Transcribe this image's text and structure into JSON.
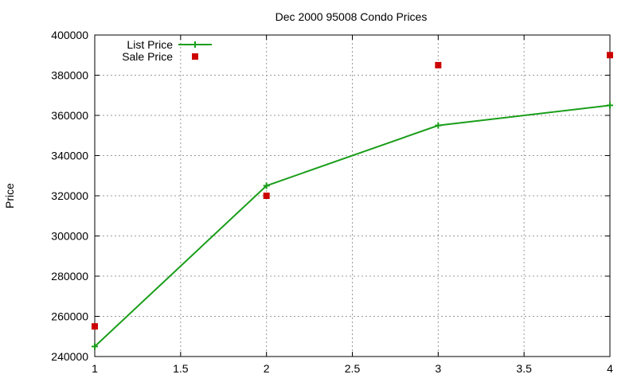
{
  "chart_data": {
    "type": "line",
    "title": "Dec 2000 95008 Condo Prices",
    "xlabel": "",
    "ylabel": "Price",
    "xlim": [
      1,
      4
    ],
    "ylim": [
      240000,
      400000
    ],
    "xticks": [
      1,
      1.5,
      2,
      2.5,
      3,
      3.5,
      4
    ],
    "yticks": [
      240000,
      260000,
      280000,
      300000,
      320000,
      340000,
      360000,
      380000,
      400000
    ],
    "grid": true,
    "legend_position": "top-left",
    "series": [
      {
        "name": "List Price",
        "style": "lines+crosses",
        "color": "#1a9e1a",
        "x": [
          1,
          2,
          3,
          4
        ],
        "y": [
          245000,
          325000,
          355000,
          365000
        ]
      },
      {
        "name": "Sale Price",
        "style": "squares",
        "color": "#cc0000",
        "x": [
          1,
          2,
          3,
          4
        ],
        "y": [
          255000,
          320000,
          385000,
          390000
        ]
      }
    ]
  }
}
